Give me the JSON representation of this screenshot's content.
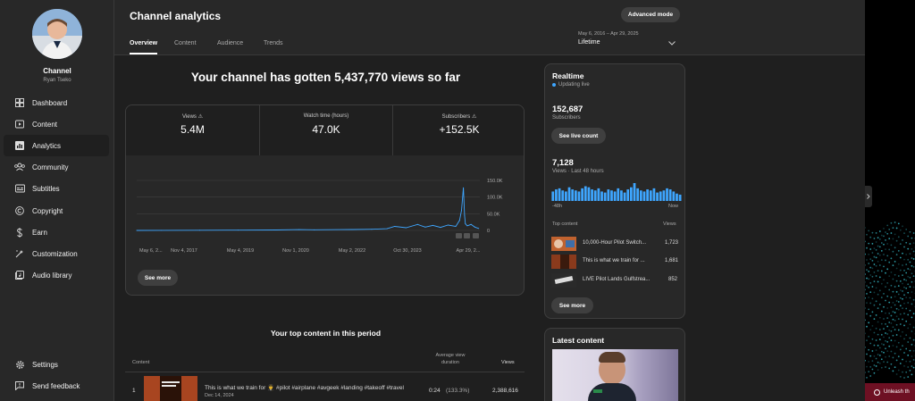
{
  "sidebar": {
    "channel_label": "Channel",
    "channel_owner": "Ryan Tseko",
    "items": [
      {
        "label": "Dashboard",
        "icon": "dashboard-icon"
      },
      {
        "label": "Content",
        "icon": "content-icon"
      },
      {
        "label": "Analytics",
        "icon": "analytics-icon",
        "active": true
      },
      {
        "label": "Community",
        "icon": "community-icon"
      },
      {
        "label": "Subtitles",
        "icon": "subtitles-icon"
      },
      {
        "label": "Copyright",
        "icon": "copyright-icon"
      },
      {
        "label": "Earn",
        "icon": "earn-icon"
      },
      {
        "label": "Customization",
        "icon": "customization-icon"
      },
      {
        "label": "Audio library",
        "icon": "audio-library-icon"
      }
    ],
    "footer": [
      {
        "label": "Settings",
        "icon": "gear-icon"
      },
      {
        "label": "Send feedback",
        "icon": "feedback-icon"
      }
    ]
  },
  "header": {
    "title": "Channel analytics",
    "advanced_mode": "Advanced mode",
    "tabs": [
      "Overview",
      "Content",
      "Audience",
      "Trends"
    ],
    "date_range": "May 6, 2016 – Apr 29, 2025",
    "date_label": "Lifetime"
  },
  "overview": {
    "headline": "Your channel has gotten 5,437,770 views so far",
    "metrics": [
      {
        "label": "Views",
        "value": "5.4M"
      },
      {
        "label": "Watch time (hours)",
        "value": "47.0K"
      },
      {
        "label": "Subscribers",
        "value": "+152.5K"
      }
    ],
    "see_more": "See more"
  },
  "chart_data": {
    "type": "line",
    "x_tick_labels": [
      "May 6, 2...",
      "Nov 4, 2017",
      "May 4, 2019",
      "Nov 1, 2020",
      "May 2, 2022",
      "Oct 30, 2023",
      "Apr 29, 2..."
    ],
    "y_tick_labels": [
      "150.0K",
      "100.0K",
      "50.0K",
      "0"
    ],
    "ylim": [
      0,
      150000
    ],
    "grid": true,
    "series": [
      {
        "color": "#3ea6ff",
        "x": [
          2016.35,
          2017.0,
          2018.0,
          2019.0,
          2020.0,
          2020.6,
          2021.0,
          2022.0,
          2022.5,
          2022.9,
          2023.1,
          2023.4,
          2023.7,
          2023.9,
          2024.1,
          2024.3,
          2024.5,
          2024.7,
          2024.8,
          2024.85,
          2024.9,
          2024.93,
          2024.95,
          2025.0,
          2025.1,
          2025.2,
          2025.3
        ],
        "values": [
          0,
          300,
          600,
          900,
          1300,
          2500,
          1800,
          2600,
          3500,
          5000,
          12000,
          8000,
          18000,
          10000,
          15000,
          9000,
          16000,
          12000,
          30000,
          60000,
          128000,
          45000,
          20000,
          14000,
          18000,
          10000,
          6000
        ]
      }
    ]
  },
  "top_content": {
    "title": "Your top content in this period",
    "columns": [
      "Content",
      "Average view duration",
      "Views"
    ],
    "rows": [
      {
        "rank": "1",
        "title": "This is what we train for 👨‍✈️ #pilot #airplane #avgeek #landing #takeoff #travel",
        "date": "Dec 14, 2024",
        "duration": "0:24",
        "percent": "(133.3%)",
        "views": "2,388,616"
      }
    ]
  },
  "realtime": {
    "title": "Realtime",
    "status": "Updating live",
    "subscribers": "152,687",
    "subscribers_label": "Subscribers",
    "live_count_button": "See live count",
    "views": "7,128",
    "views_label": "Views · Last 48 hours",
    "axis_left": "-48h",
    "axis_right": "Now",
    "bars": [
      9,
      11,
      12,
      10,
      9,
      13,
      11,
      10,
      9,
      12,
      14,
      13,
      11,
      10,
      12,
      9,
      8,
      11,
      10,
      9,
      12,
      10,
      8,
      11,
      13,
      17,
      12,
      10,
      9,
      11,
      10,
      12,
      8,
      9,
      10,
      12,
      11,
      9,
      7,
      6
    ],
    "top_content_label": "Top content",
    "views_col_label": "Views",
    "items": [
      {
        "title": "10,000-Hour Pilot Switch...",
        "views": "1,723"
      },
      {
        "title": "This is what we train for ...",
        "views": "1,681"
      },
      {
        "title": "LIVE Pilot Lands Gulfstrea...",
        "views": "852"
      }
    ],
    "see_more": "See more"
  },
  "latest_content": {
    "title": "Latest content"
  },
  "right_panel": {
    "banner": "Unleash th"
  }
}
